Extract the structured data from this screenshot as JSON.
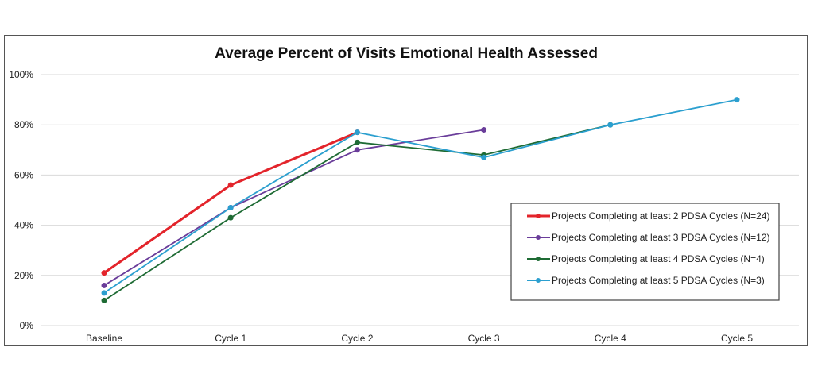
{
  "chart_data": {
    "type": "line",
    "title": "Average Percent of Visits Emotional Health Assessed",
    "xlabel": "",
    "ylabel": "",
    "categories": [
      "Baseline",
      "Cycle 1",
      "Cycle 2",
      "Cycle 3",
      "Cycle 4",
      "Cycle 5"
    ],
    "ylim": [
      0,
      100
    ],
    "yticks": [
      "0%",
      "20%",
      "40%",
      "60%",
      "80%",
      "100%"
    ],
    "grid": true,
    "legend_position": "right",
    "series": [
      {
        "name": "Projects Completing at least 2 PDSA Cycles (N=24)",
        "color": "#e3242b",
        "values": [
          21,
          56,
          77,
          null,
          null,
          null
        ]
      },
      {
        "name": "Projects Completing at least 3 PDSA Cycles (N=12)",
        "color": "#6a3d9a",
        "values": [
          16,
          47,
          70,
          78,
          null,
          null
        ]
      },
      {
        "name": "Projects Completing at least 4 PDSA Cycles (N=4)",
        "color": "#1e6b34",
        "values": [
          10,
          43,
          73,
          68,
          80,
          null
        ]
      },
      {
        "name": "Projects Completing at least 5 PDSA Cycles (N=3)",
        "color": "#2b9fcf",
        "values": [
          13,
          47,
          77,
          67,
          80,
          90
        ]
      }
    ]
  }
}
